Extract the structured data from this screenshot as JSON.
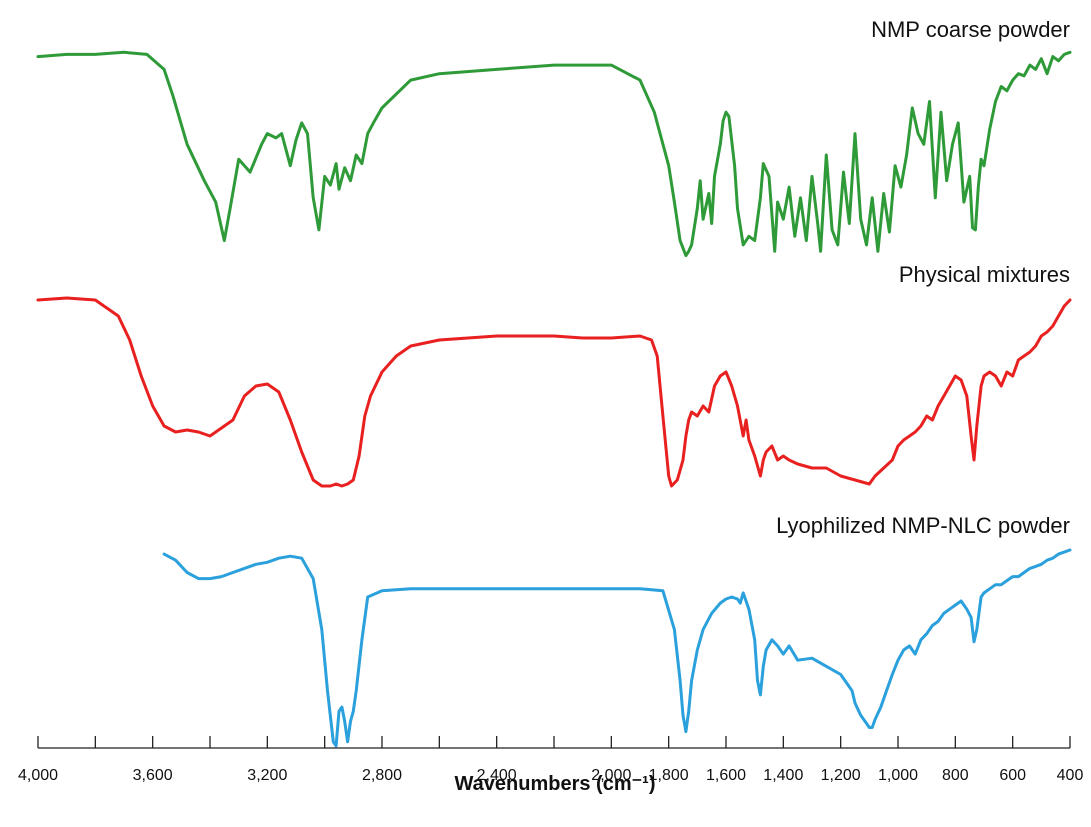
{
  "chart_data": {
    "type": "line",
    "xlabel": "Wavenumbers (cm⁻¹)",
    "ylabel": "",
    "xlim": [
      4000,
      400
    ],
    "x_reversed": true,
    "y_axis_shown": false,
    "grid": false,
    "legend": "labels above each trace, right-aligned",
    "x_ticks": [
      {
        "value": 4000,
        "label": "4,000"
      },
      {
        "value": 3600,
        "label": "3,600"
      },
      {
        "value": 3200,
        "label": "3,200"
      },
      {
        "value": 2800,
        "label": "2,800"
      },
      {
        "value": 2400,
        "label": "2,400"
      },
      {
        "value": 2000,
        "label": "2,000"
      },
      {
        "value": 1800,
        "label": "1,800"
      },
      {
        "value": 1600,
        "label": "1,600"
      },
      {
        "value": 1400,
        "label": "1,400"
      },
      {
        "value": 1200,
        "label": "1,200"
      },
      {
        "value": 1000,
        "label": "1,000"
      },
      {
        "value": 800,
        "label": "800"
      },
      {
        "value": 600,
        "label": "600"
      },
      {
        "value": 400,
        "label": "400"
      }
    ],
    "series": [
      {
        "name": "NMP coarse powder",
        "color": "#2e9a38",
        "x": [
          4000,
          3900,
          3800,
          3700,
          3620,
          3560,
          3530,
          3480,
          3420,
          3380,
          3350,
          3330,
          3300,
          3260,
          3220,
          3200,
          3170,
          3150,
          3120,
          3100,
          3080,
          3060,
          3040,
          3020,
          3000,
          2980,
          2960,
          2950,
          2930,
          2910,
          2890,
          2870,
          2850,
          2830,
          2800,
          2700,
          2600,
          2400,
          2200,
          2000,
          1900,
          1850,
          1800,
          1780,
          1760,
          1740,
          1730,
          1720,
          1700,
          1690,
          1680,
          1660,
          1650,
          1640,
          1620,
          1610,
          1600,
          1590,
          1570,
          1560,
          1540,
          1520,
          1500,
          1480,
          1470,
          1450,
          1430,
          1420,
          1400,
          1380,
          1360,
          1340,
          1320,
          1300,
          1280,
          1270,
          1250,
          1230,
          1210,
          1190,
          1170,
          1150,
          1130,
          1110,
          1090,
          1070,
          1050,
          1030,
          1010,
          990,
          970,
          950,
          930,
          910,
          890,
          870,
          850,
          830,
          810,
          790,
          770,
          750,
          740,
          730,
          720,
          710,
          700,
          680,
          660,
          640,
          620,
          600,
          580,
          560,
          540,
          520,
          500,
          480,
          460,
          440,
          420,
          400
        ],
        "y": [
          0.96,
          0.97,
          0.97,
          0.98,
          0.97,
          0.9,
          0.78,
          0.55,
          0.38,
          0.28,
          0.1,
          0.25,
          0.48,
          0.42,
          0.55,
          0.6,
          0.58,
          0.6,
          0.45,
          0.57,
          0.65,
          0.6,
          0.3,
          0.15,
          0.4,
          0.36,
          0.46,
          0.34,
          0.44,
          0.38,
          0.5,
          0.46,
          0.6,
          0.65,
          0.72,
          0.85,
          0.88,
          0.9,
          0.92,
          0.92,
          0.85,
          0.7,
          0.45,
          0.28,
          0.1,
          0.03,
          0.05,
          0.08,
          0.25,
          0.38,
          0.2,
          0.32,
          0.18,
          0.4,
          0.55,
          0.66,
          0.7,
          0.68,
          0.45,
          0.25,
          0.08,
          0.12,
          0.1,
          0.3,
          0.46,
          0.4,
          0.05,
          0.28,
          0.2,
          0.35,
          0.12,
          0.3,
          0.1,
          0.4,
          0.18,
          0.05,
          0.5,
          0.15,
          0.08,
          0.42,
          0.18,
          0.6,
          0.2,
          0.08,
          0.3,
          0.05,
          0.32,
          0.14,
          0.45,
          0.35,
          0.5,
          0.72,
          0.6,
          0.55,
          0.75,
          0.3,
          0.7,
          0.38,
          0.55,
          0.65,
          0.28,
          0.4,
          0.16,
          0.15,
          0.35,
          0.48,
          0.45,
          0.62,
          0.75,
          0.82,
          0.8,
          0.85,
          0.88,
          0.87,
          0.92,
          0.9,
          0.95,
          0.88,
          0.96,
          0.94,
          0.97,
          0.98
        ]
      },
      {
        "name": "Physical mixtures",
        "color": "#e8201f",
        "x": [
          4000,
          3900,
          3800,
          3720,
          3680,
          3640,
          3600,
          3560,
          3520,
          3480,
          3440,
          3400,
          3360,
          3320,
          3280,
          3240,
          3200,
          3160,
          3120,
          3080,
          3040,
          3010,
          2980,
          2960,
          2940,
          2920,
          2900,
          2880,
          2860,
          2840,
          2800,
          2750,
          2700,
          2600,
          2500,
          2400,
          2300,
          2200,
          2100,
          2000,
          1900,
          1860,
          1840,
          1820,
          1800,
          1790,
          1770,
          1750,
          1740,
          1730,
          1720,
          1700,
          1680,
          1660,
          1640,
          1620,
          1600,
          1580,
          1560,
          1540,
          1530,
          1520,
          1500,
          1480,
          1470,
          1460,
          1440,
          1420,
          1400,
          1380,
          1350,
          1300,
          1250,
          1200,
          1150,
          1100,
          1080,
          1050,
          1020,
          1000,
          980,
          960,
          940,
          920,
          900,
          880,
          860,
          840,
          820,
          800,
          780,
          760,
          745,
          735,
          725,
          710,
          700,
          680,
          660,
          640,
          620,
          600,
          580,
          560,
          540,
          520,
          500,
          480,
          460,
          440,
          420,
          400
        ],
        "y": [
          0.98,
          0.99,
          0.98,
          0.9,
          0.78,
          0.6,
          0.45,
          0.35,
          0.32,
          0.33,
          0.32,
          0.3,
          0.34,
          0.38,
          0.5,
          0.55,
          0.56,
          0.52,
          0.38,
          0.22,
          0.08,
          0.05,
          0.05,
          0.06,
          0.05,
          0.06,
          0.08,
          0.2,
          0.4,
          0.5,
          0.62,
          0.7,
          0.75,
          0.78,
          0.79,
          0.8,
          0.8,
          0.8,
          0.79,
          0.79,
          0.8,
          0.78,
          0.7,
          0.4,
          0.1,
          0.05,
          0.08,
          0.18,
          0.3,
          0.38,
          0.42,
          0.4,
          0.45,
          0.42,
          0.55,
          0.6,
          0.62,
          0.55,
          0.45,
          0.3,
          0.38,
          0.28,
          0.2,
          0.1,
          0.18,
          0.22,
          0.25,
          0.18,
          0.2,
          0.18,
          0.16,
          0.14,
          0.14,
          0.1,
          0.08,
          0.06,
          0.1,
          0.14,
          0.18,
          0.25,
          0.28,
          0.3,
          0.32,
          0.35,
          0.4,
          0.38,
          0.45,
          0.5,
          0.55,
          0.6,
          0.58,
          0.5,
          0.3,
          0.18,
          0.35,
          0.55,
          0.6,
          0.62,
          0.6,
          0.55,
          0.62,
          0.6,
          0.68,
          0.7,
          0.72,
          0.75,
          0.8,
          0.82,
          0.85,
          0.9,
          0.95,
          0.98
        ]
      },
      {
        "name": "Lyophilized NMP-NLC powder",
        "color": "#2aa0dc",
        "x": [
          3560,
          3520,
          3480,
          3440,
          3400,
          3360,
          3320,
          3280,
          3240,
          3200,
          3160,
          3120,
          3080,
          3040,
          3010,
          2990,
          2970,
          2960,
          2950,
          2940,
          2930,
          2920,
          2910,
          2900,
          2890,
          2870,
          2850,
          2800,
          2700,
          2600,
          2500,
          2400,
          2300,
          2200,
          2100,
          2000,
          1900,
          1820,
          1780,
          1760,
          1750,
          1740,
          1730,
          1720,
          1700,
          1680,
          1650,
          1620,
          1600,
          1580,
          1560,
          1550,
          1540,
          1520,
          1500,
          1490,
          1480,
          1470,
          1460,
          1440,
          1420,
          1400,
          1380,
          1350,
          1300,
          1250,
          1200,
          1180,
          1160,
          1150,
          1130,
          1110,
          1100,
          1090,
          1080,
          1060,
          1040,
          1020,
          1000,
          980,
          960,
          940,
          920,
          900,
          880,
          860,
          840,
          820,
          800,
          780,
          760,
          745,
          735,
          725,
          710,
          700,
          680,
          660,
          640,
          620,
          600,
          580,
          560,
          540,
          520,
          500,
          480,
          460,
          440,
          420,
          400
        ],
        "y": [
          0.97,
          0.94,
          0.88,
          0.85,
          0.85,
          0.86,
          0.88,
          0.9,
          0.92,
          0.93,
          0.95,
          0.96,
          0.95,
          0.85,
          0.6,
          0.3,
          0.05,
          0.03,
          0.2,
          0.22,
          0.15,
          0.05,
          0.15,
          0.2,
          0.3,
          0.55,
          0.76,
          0.79,
          0.8,
          0.8,
          0.8,
          0.8,
          0.8,
          0.8,
          0.8,
          0.8,
          0.8,
          0.79,
          0.6,
          0.35,
          0.18,
          0.1,
          0.2,
          0.35,
          0.5,
          0.6,
          0.68,
          0.73,
          0.75,
          0.76,
          0.75,
          0.73,
          0.78,
          0.7,
          0.55,
          0.35,
          0.28,
          0.42,
          0.5,
          0.55,
          0.52,
          0.48,
          0.52,
          0.45,
          0.46,
          0.42,
          0.38,
          0.34,
          0.3,
          0.24,
          0.18,
          0.14,
          0.12,
          0.12,
          0.16,
          0.22,
          0.3,
          0.38,
          0.45,
          0.5,
          0.52,
          0.48,
          0.55,
          0.58,
          0.62,
          0.64,
          0.68,
          0.7,
          0.72,
          0.74,
          0.7,
          0.66,
          0.54,
          0.6,
          0.76,
          0.78,
          0.8,
          0.82,
          0.82,
          0.84,
          0.86,
          0.86,
          0.88,
          0.9,
          0.91,
          0.92,
          0.94,
          0.95,
          0.97,
          0.98,
          0.99
        ]
      }
    ]
  }
}
